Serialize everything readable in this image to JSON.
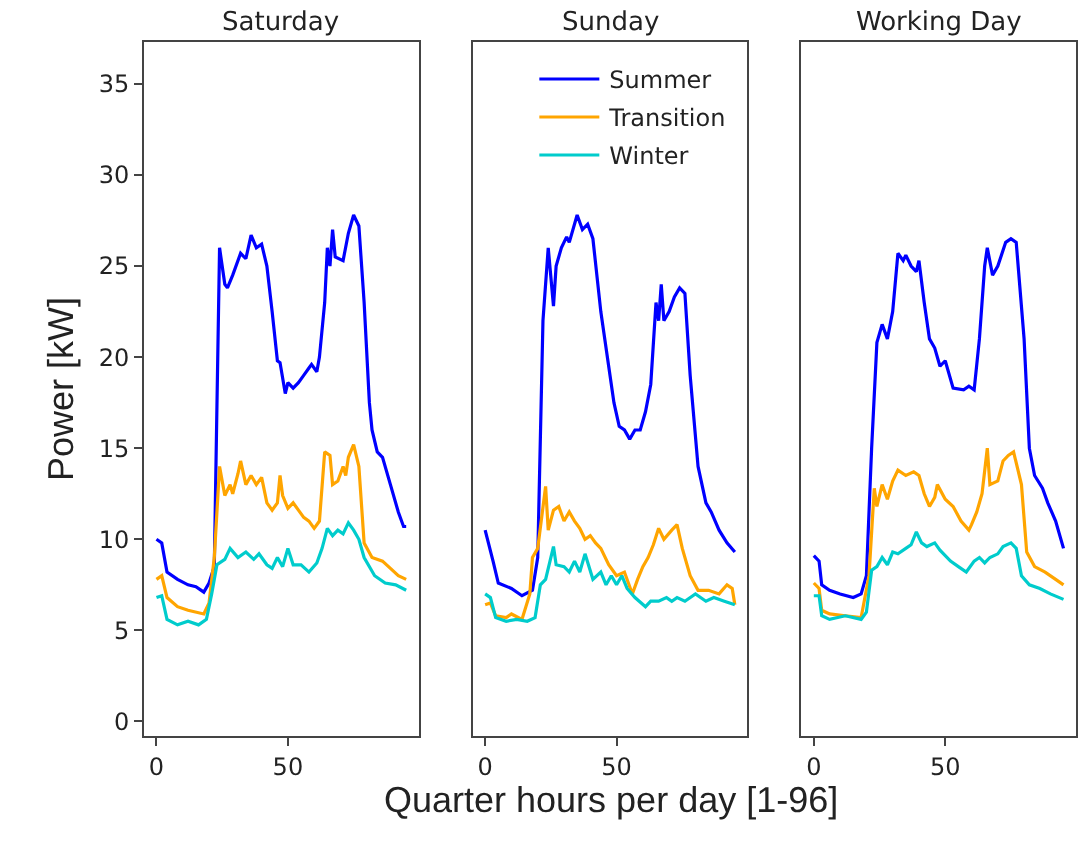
{
  "chart_data": [
    {
      "type": "line",
      "title": "Saturday",
      "ylabel": "Power [kW]",
      "xlim": [
        -4.75,
        99.75
      ],
      "ylim": [
        -0.8,
        37.3
      ],
      "xticks": [
        0,
        50
      ],
      "yticks": [
        0,
        5,
        10,
        15,
        20,
        25,
        30,
        35
      ],
      "series": [
        {
          "color": "#0000ff",
          "x": [
            0,
            2,
            4,
            8,
            12,
            15,
            18,
            20,
            22,
            24,
            26,
            27,
            29,
            32,
            34,
            36,
            38,
            40,
            42,
            44,
            46,
            47,
            49,
            50,
            52,
            54,
            56,
            58,
            59,
            61,
            62,
            64,
            65,
            66,
            67,
            68,
            71,
            73,
            75,
            77,
            79,
            81,
            82,
            84,
            86,
            89,
            92,
            94,
            95
          ],
          "values": [
            10,
            9.8,
            8.2,
            7.8,
            7.5,
            7.4,
            7.1,
            7.6,
            8.5,
            26,
            24,
            23.8,
            24.5,
            25.7,
            25.4,
            26.7,
            26,
            26.2,
            25,
            22.5,
            19.8,
            19.7,
            18,
            18.6,
            18.3,
            18.6,
            19,
            19.4,
            19.6,
            19.2,
            20,
            23,
            26,
            25,
            27,
            25.5,
            25.3,
            26.8,
            27.8,
            27.2,
            23,
            17.5,
            16,
            14.8,
            14.5,
            13,
            11.5,
            10.7,
            10.7
          ]
        },
        {
          "color": "#ffa500",
          "x": [
            0,
            2,
            4,
            8,
            12,
            18,
            20,
            22,
            24,
            26,
            28,
            29,
            31,
            32,
            34,
            36,
            38,
            40,
            42,
            44,
            46,
            47,
            48,
            50,
            52,
            54,
            56,
            58,
            60,
            62,
            64,
            66,
            67,
            69,
            71,
            72,
            73,
            75,
            77,
            79,
            82,
            86,
            89,
            92,
            95
          ],
          "values": [
            7.8,
            8,
            6.8,
            6.3,
            6.1,
            5.9,
            6.5,
            9,
            14,
            12.4,
            13,
            12.5,
            13.6,
            14.3,
            13,
            13.5,
            13,
            13.4,
            12,
            11.6,
            12,
            13.5,
            12.4,
            11.7,
            12,
            11.6,
            11.2,
            11,
            10.6,
            11,
            14.8,
            14.6,
            13,
            13.2,
            14,
            13.5,
            14.5,
            15.2,
            14,
            9.8,
            9,
            8.8,
            8.4,
            8,
            7.8
          ]
        },
        {
          "color": "#00cccc",
          "x": [
            0,
            2,
            4,
            8,
            12,
            16,
            19,
            21,
            23,
            26,
            28,
            31,
            34,
            37,
            39,
            42,
            44,
            46,
            48,
            50,
            52,
            55,
            58,
            61,
            63,
            65,
            67,
            69,
            71,
            73,
            75,
            77,
            79,
            83,
            87,
            91,
            95
          ],
          "values": [
            6.8,
            6.9,
            5.6,
            5.3,
            5.5,
            5.3,
            5.6,
            7,
            8.6,
            8.9,
            9.5,
            9,
            9.3,
            8.9,
            9.2,
            8.6,
            8.4,
            9,
            8.5,
            9.5,
            8.6,
            8.6,
            8.2,
            8.7,
            9.5,
            10.6,
            10.2,
            10.5,
            10.3,
            10.9,
            10.5,
            10,
            9,
            8,
            7.6,
            7.5,
            7.2
          ]
        }
      ]
    },
    {
      "type": "line",
      "title": "Sunday",
      "xlabel": "Quarter hours per day [1-96]",
      "xlim": [
        -4.75,
        99.75
      ],
      "ylim": [
        -0.8,
        37.3
      ],
      "xticks": [
        0,
        50
      ],
      "tick_labels": "x",
      "legend": "top right",
      "series": [
        {
          "name": "Summer",
          "color": "#0000ff",
          "x": [
            0,
            3,
            5,
            10,
            14,
            18,
            20,
            22,
            24,
            26,
            27,
            29,
            31,
            32,
            35,
            37,
            39,
            41,
            44,
            47,
            49,
            51,
            53,
            55,
            57,
            59,
            61,
            63,
            65,
            66,
            67,
            68,
            70,
            72,
            74,
            76,
            78,
            81,
            84,
            86,
            89,
            92,
            95
          ],
          "values": [
            10.5,
            8.8,
            7.6,
            7.3,
            6.9,
            7.2,
            9,
            22,
            26,
            22.8,
            25,
            26,
            26.6,
            26.3,
            27.8,
            27,
            27.3,
            26.5,
            22.5,
            19.5,
            17.5,
            16.2,
            16,
            15.5,
            16,
            16,
            17,
            18.5,
            23,
            22,
            24,
            22,
            22.5,
            23.3,
            23.8,
            23.5,
            19,
            14,
            12,
            11.5,
            10.5,
            9.8,
            9.3
          ]
        },
        {
          "name": "Transition",
          "color": "#ffa500",
          "x": [
            0,
            2,
            4,
            8,
            10,
            14,
            17,
            18,
            20,
            23,
            24,
            26,
            28,
            30,
            32,
            34,
            36,
            38,
            40,
            42,
            44,
            47,
            50,
            53,
            56,
            58,
            60,
            62,
            64,
            66,
            68,
            71,
            73,
            75,
            78,
            81,
            85,
            89,
            92,
            94,
            95
          ],
          "values": [
            6.4,
            6.5,
            5.8,
            5.7,
            5.9,
            5.6,
            7,
            9,
            9.5,
            12.9,
            10.5,
            11.6,
            11.8,
            11,
            11.5,
            11,
            10.6,
            10,
            10.2,
            9.8,
            9.5,
            8.6,
            8,
            8.2,
            7,
            7.8,
            8.5,
            9,
            9.7,
            10.6,
            10,
            10.5,
            10.8,
            9.5,
            8,
            7.2,
            7.2,
            7,
            7.5,
            7.3,
            6.4
          ]
        },
        {
          "name": "Winter",
          "color": "#00cccc",
          "x": [
            0,
            2,
            4,
            8,
            12,
            16,
            19,
            21,
            23,
            26,
            27,
            30,
            32,
            34,
            36,
            38,
            41,
            44,
            46,
            48,
            50,
            52,
            54,
            57,
            61,
            63,
            66,
            69,
            71,
            73,
            76,
            80,
            84,
            87,
            91,
            95
          ],
          "values": [
            7,
            6.8,
            5.7,
            5.5,
            5.6,
            5.5,
            5.7,
            7.5,
            7.8,
            9.6,
            8.6,
            8.5,
            8.2,
            8.8,
            8.2,
            9.2,
            7.8,
            8.2,
            7.5,
            8,
            7.5,
            8,
            7.3,
            6.8,
            6.3,
            6.6,
            6.6,
            6.8,
            6.6,
            6.8,
            6.6,
            7,
            6.6,
            6.8,
            6.6,
            6.4
          ]
        }
      ]
    },
    {
      "type": "line",
      "title": "Working Day",
      "xlim": [
        -4.75,
        99.75
      ],
      "ylim": [
        -0.8,
        37.3
      ],
      "xticks": [
        0,
        50
      ],
      "tick_labels": "x",
      "series": [
        {
          "color": "#0000ff",
          "x": [
            0,
            2,
            3,
            6,
            10,
            15,
            18,
            20,
            22,
            24,
            26,
            28,
            30,
            32,
            34,
            35,
            37,
            39,
            40,
            42,
            44,
            46,
            48,
            50,
            53,
            57,
            59,
            61,
            63,
            65,
            66,
            68,
            70,
            73,
            75,
            77,
            80,
            82,
            84,
            87,
            89,
            92,
            95
          ],
          "values": [
            9.1,
            8.8,
            7.5,
            7.2,
            7,
            6.8,
            7,
            8,
            15,
            20.8,
            21.8,
            21,
            22.5,
            25.7,
            25.3,
            25.6,
            25,
            24.7,
            25.3,
            23,
            21,
            20.5,
            19.5,
            19.8,
            18.3,
            18.2,
            18.4,
            18.2,
            21,
            25,
            26,
            24.5,
            25,
            26.3,
            26.5,
            26.3,
            21,
            15,
            13.5,
            12.8,
            12,
            11,
            9.5
          ]
        },
        {
          "color": "#ffa500",
          "x": [
            0,
            2,
            3,
            6,
            12,
            18,
            21,
            23,
            24,
            26,
            28,
            30,
            32,
            35,
            38,
            40,
            42,
            44,
            46,
            47,
            50,
            53,
            56,
            59,
            60,
            62,
            64,
            66,
            67,
            70,
            72,
            74,
            76,
            79,
            81,
            84,
            88,
            92,
            95
          ],
          "values": [
            7.6,
            7.3,
            6.1,
            5.9,
            5.8,
            5.7,
            8,
            12.8,
            11.8,
            13,
            12.2,
            13.2,
            13.8,
            13.5,
            13.7,
            13.5,
            12.5,
            11.8,
            12.3,
            13,
            12.2,
            11.8,
            11,
            10.5,
            10.8,
            11.5,
            12.5,
            15,
            13,
            13.2,
            14.3,
            14.6,
            14.8,
            13,
            9.3,
            8.5,
            8.2,
            7.8,
            7.5
          ]
        },
        {
          "color": "#00cccc",
          "x": [
            0,
            2,
            3,
            6,
            12,
            18,
            20,
            22,
            24,
            26,
            28,
            30,
            32,
            35,
            37,
            39,
            41,
            43,
            46,
            48,
            52,
            55,
            58,
            61,
            63,
            65,
            67,
            70,
            72,
            75,
            77,
            79,
            82,
            86,
            90,
            95
          ],
          "values": [
            6.9,
            6.9,
            5.8,
            5.6,
            5.8,
            5.6,
            6,
            8.3,
            8.5,
            9,
            8.6,
            9.3,
            9.2,
            9.5,
            9.7,
            10.4,
            9.8,
            9.6,
            9.8,
            9.4,
            8.8,
            8.5,
            8.2,
            8.8,
            9,
            8.7,
            9,
            9.2,
            9.6,
            9.8,
            9.5,
            8,
            7.5,
            7.3,
            7,
            6.7
          ]
        }
      ]
    }
  ]
}
